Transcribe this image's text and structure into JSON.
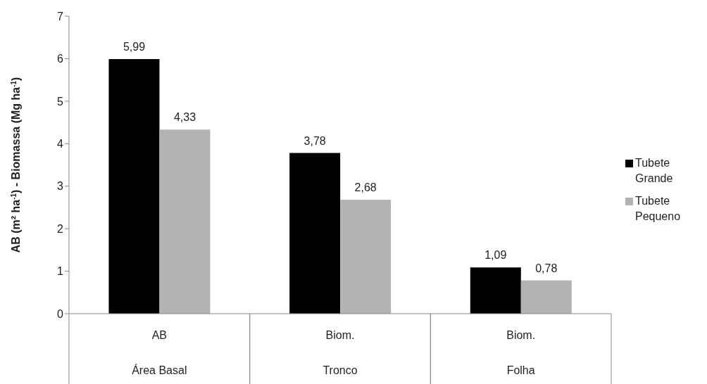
{
  "chart_data": {
    "type": "bar",
    "ylabel": "AB (m² ha$^{-1}$) - Biomassa (Mg ha$^{-1}$)",
    "categories": [
      "AB\nÁrea Basal",
      "Biom.\nTronco",
      "Biom.\nFolha"
    ],
    "ylim": [
      0,
      7
    ],
    "yticks": [
      0,
      1,
      2,
      3,
      4,
      5,
      6,
      7
    ],
    "grid": false,
    "legend": "right",
    "series": [
      {
        "name": "Tubete Grande",
        "color": "#000000",
        "values": [
          5.99,
          3.78,
          1.09
        ],
        "value_labels": [
          "5,99",
          "3,78",
          "1,09"
        ]
      },
      {
        "name": "Tubete Pequeno",
        "color": "#b3b3b3",
        "values": [
          4.33,
          2.68,
          0.78
        ],
        "value_labels": [
          "4,33",
          "2,68",
          "0,78"
        ]
      }
    ]
  }
}
